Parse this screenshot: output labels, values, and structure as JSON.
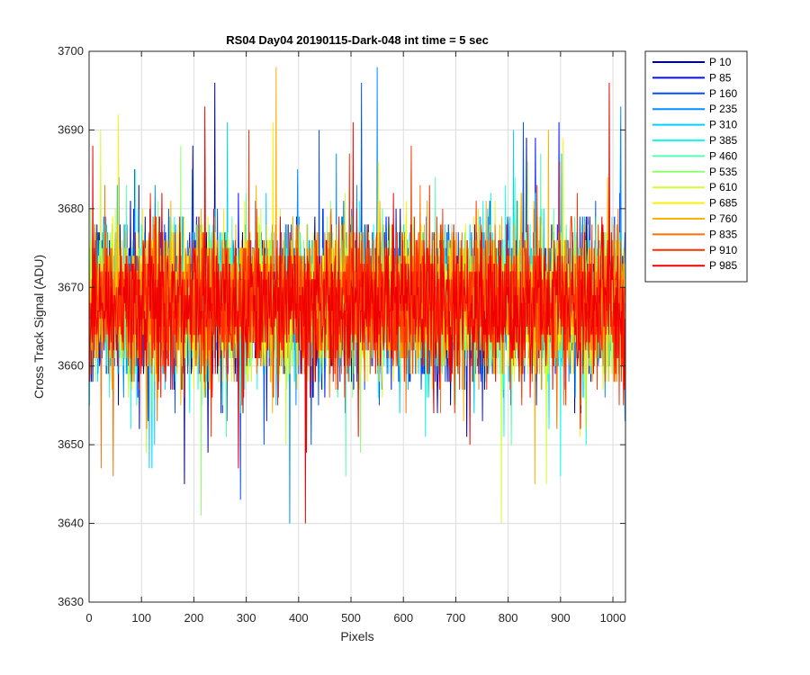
{
  "chart_data": {
    "type": "line",
    "title": "RS04 Day04 20190115-Dark-048 int time = 5 sec",
    "xlabel": "Pixels",
    "ylabel": "Cross Track Signal (ADU)",
    "xlim": [
      0,
      1024
    ],
    "ylim": [
      3630,
      3700
    ],
    "xticks": [
      0,
      100,
      200,
      300,
      400,
      500,
      600,
      700,
      800,
      900,
      1000
    ],
    "yticks": [
      3630,
      3640,
      3650,
      3660,
      3670,
      3680,
      3690,
      3700
    ],
    "grid": true,
    "legend_position": "outside-top-right",
    "noise_profile": {
      "n_points": 1024,
      "center": 3668,
      "spread": 4.5,
      "min": 3639,
      "max": 3698
    },
    "series": [
      {
        "name": "P 10",
        "color": "#00008F"
      },
      {
        "name": "P 85",
        "color": "#0010FF"
      },
      {
        "name": "P 160",
        "color": "#0050FF"
      },
      {
        "name": "P 235",
        "color": "#0090FF"
      },
      {
        "name": "P 310",
        "color": "#00D0FF"
      },
      {
        "name": "P 385",
        "color": "#10FFEF"
      },
      {
        "name": "P 460",
        "color": "#50FFAF"
      },
      {
        "name": "P 535",
        "color": "#90FF6F"
      },
      {
        "name": "P 610",
        "color": "#CFFF30"
      },
      {
        "name": "P 685",
        "color": "#FFEF00"
      },
      {
        "name": "P 760",
        "color": "#FFB000"
      },
      {
        "name": "P 835",
        "color": "#FF7000"
      },
      {
        "name": "P 910",
        "color": "#FF3000"
      },
      {
        "name": "P 985",
        "color": "#EF0000"
      }
    ]
  }
}
